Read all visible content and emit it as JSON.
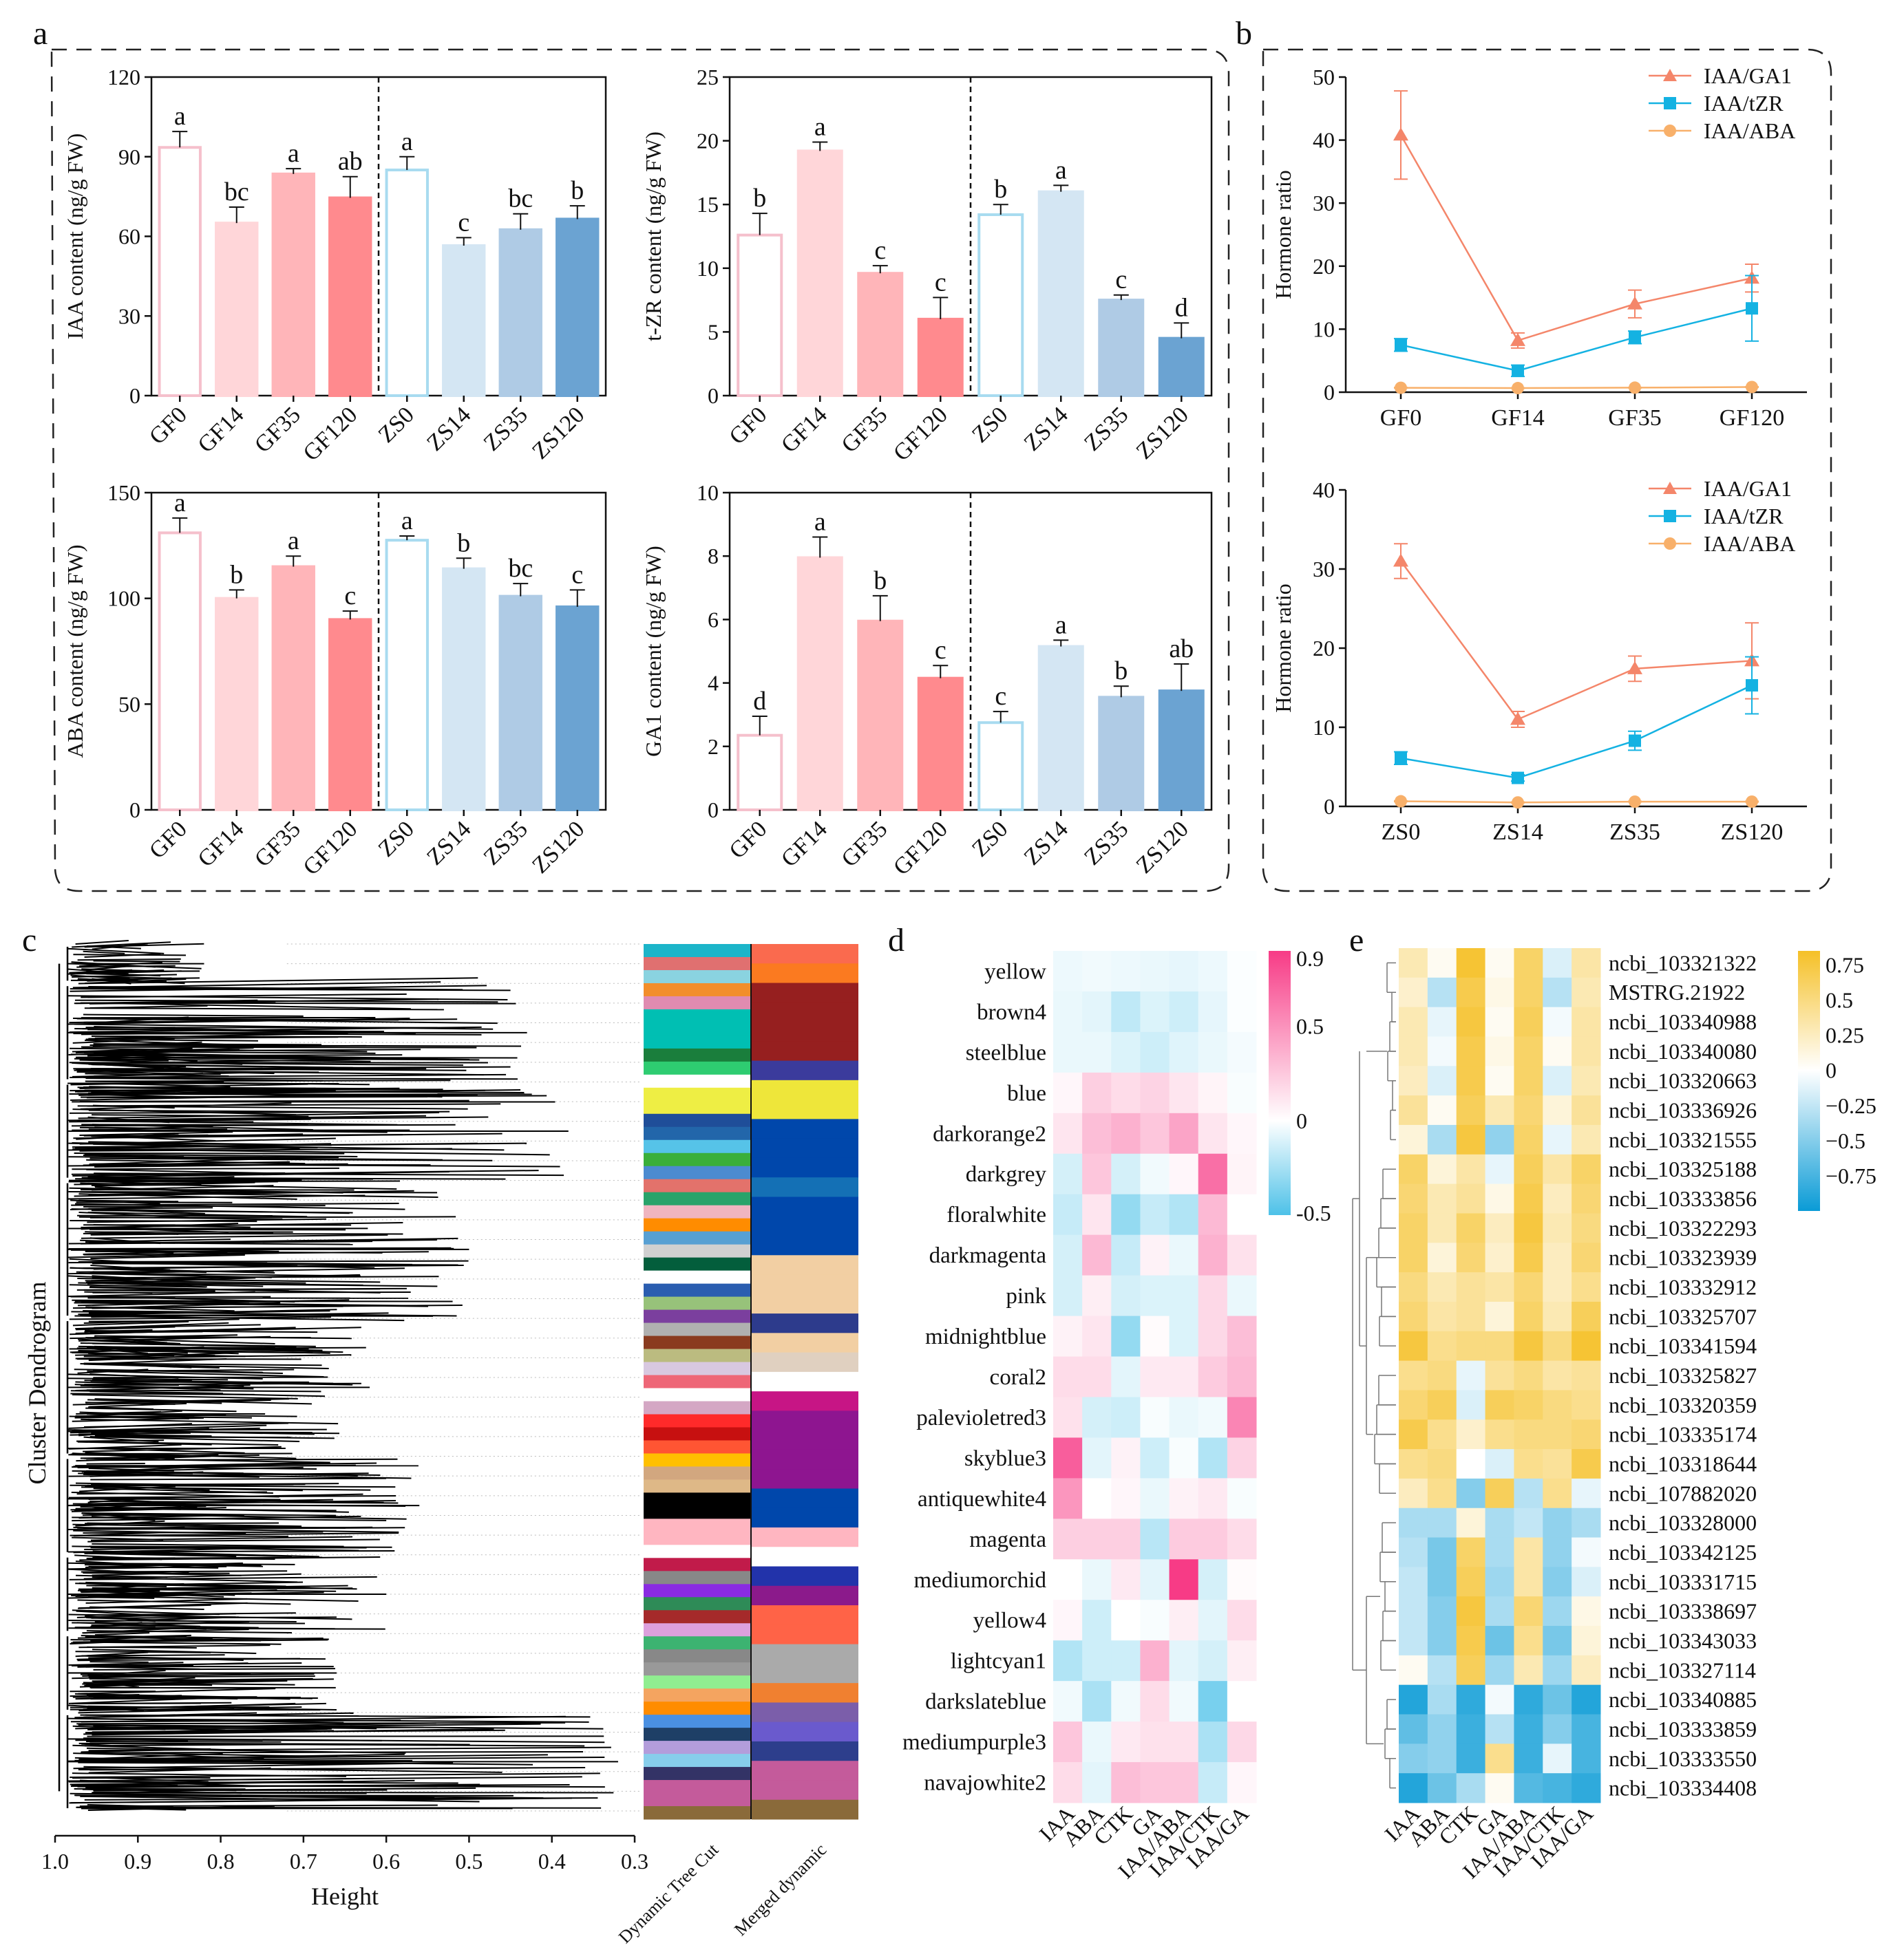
{
  "panels": {
    "a": "a",
    "b": "b",
    "c": "c",
    "d": "d",
    "e": "e"
  },
  "bar_group_labels": [
    "GF0",
    "GF14",
    "GF35",
    "GF120",
    "ZS0",
    "ZS14",
    "ZS35",
    "ZS120"
  ],
  "bar_colors": {
    "edge": [
      "#F5C0CC",
      "#FFD6D9",
      "#FFB5B9",
      "#FF8A8E",
      "#A8DBF0",
      "#D4E6F3",
      "#AFCBE5",
      "#6BA3D2"
    ],
    "fill": [
      "#FFFFFF",
      "#FFD6D9",
      "#FFB5B9",
      "#FF8A8E",
      "#FFFFFF",
      "#D4E6F3",
      "#AFCBE5",
      "#6BA3D2"
    ]
  },
  "chart_data": [
    {
      "id": "a1",
      "type": "bar",
      "ylabel": "IAA content (ng/g FW)",
      "ylim": [
        0,
        120
      ],
      "yticks": [
        0,
        30,
        60,
        90,
        120
      ],
      "categories": [
        "GF0",
        "GF14",
        "GF35",
        "GF120",
        "ZS0",
        "ZS14",
        "ZS35",
        "ZS120"
      ],
      "values": [
        93.5,
        65,
        83.5,
        74.5,
        85,
        56.5,
        62.5,
        66.5
      ],
      "errors": [
        6,
        6,
        2,
        8,
        5,
        3,
        6,
        5
      ],
      "letters": [
        "a",
        "bc",
        "a",
        "ab",
        "a",
        "c",
        "bc",
        "b"
      ]
    },
    {
      "id": "a2",
      "type": "bar",
      "ylabel": "t-ZR content (ng/g FW)",
      "ylim": [
        0,
        25
      ],
      "yticks": [
        0,
        5,
        10,
        15,
        20,
        25
      ],
      "categories": [
        "GF0",
        "GF14",
        "GF35",
        "GF120",
        "ZS0",
        "ZS14",
        "ZS35",
        "ZS120"
      ],
      "values": [
        12.6,
        19.2,
        9.6,
        6.0,
        14.2,
        16.0,
        7.5,
        4.5
      ],
      "errors": [
        1.7,
        0.7,
        0.6,
        1.7,
        0.8,
        0.5,
        0.4,
        1.2
      ],
      "letters": [
        "b",
        "a",
        "c",
        "c",
        "b",
        "a",
        "c",
        "d"
      ]
    },
    {
      "id": "a3",
      "type": "bar",
      "ylabel": "ABA content (ng/g FW)",
      "ylim": [
        0,
        150
      ],
      "yticks": [
        0,
        50,
        100,
        150
      ],
      "categories": [
        "GF0",
        "GF14",
        "GF35",
        "GF120",
        "ZS0",
        "ZS14",
        "ZS35",
        "ZS120"
      ],
      "values": [
        131,
        100,
        115,
        90,
        127.5,
        114,
        101,
        96
      ],
      "errors": [
        7,
        4,
        5,
        4,
        2,
        5,
        6,
        8
      ],
      "letters": [
        "a",
        "b",
        "a",
        "c",
        "a",
        "b",
        "bc",
        "c"
      ]
    },
    {
      "id": "a4",
      "type": "bar",
      "ylabel": "GA1 content (ng/g FW)",
      "ylim": [
        0,
        10
      ],
      "yticks": [
        0,
        2,
        4,
        6,
        8,
        10
      ],
      "categories": [
        "GF0",
        "GF14",
        "GF35",
        "GF120",
        "ZS0",
        "ZS14",
        "ZS35",
        "ZS120"
      ],
      "values": [
        2.35,
        7.95,
        5.95,
        4.15,
        2.75,
        5.15,
        3.55,
        3.75
      ],
      "errors": [
        0.6,
        0.65,
        0.8,
        0.4,
        0.35,
        0.2,
        0.35,
        0.85
      ],
      "letters": [
        "d",
        "a",
        "b",
        "c",
        "c",
        "a",
        "b",
        "ab"
      ]
    },
    {
      "id": "b1",
      "type": "line",
      "ylabel": "Hormone ratio",
      "ylim": [
        0,
        50
      ],
      "yticks": [
        0,
        10,
        20,
        30,
        40,
        50
      ],
      "categories": [
        "GF0",
        "GF14",
        "GF35",
        "GF120"
      ],
      "series": [
        {
          "name": "IAA/GA1",
          "values": [
            40.8,
            8.2,
            14.0,
            18.1
          ],
          "errors": [
            7.0,
            1.2,
            2.2,
            2.2
          ],
          "color": "#F4866A",
          "marker": "triangle"
        },
        {
          "name": "IAA/tZR",
          "values": [
            7.5,
            3.4,
            8.7,
            13.3
          ],
          "errors": [
            1.0,
            0.9,
            1.0,
            5.2
          ],
          "color": "#14B2E2",
          "marker": "square"
        },
        {
          "name": "IAA/ABA",
          "values": [
            0.7,
            0.65,
            0.72,
            0.82
          ],
          "errors": [
            0.05,
            0.05,
            0.05,
            0.05
          ],
          "color": "#F8B06A",
          "marker": "circle"
        }
      ]
    },
    {
      "id": "b2",
      "type": "line",
      "ylabel": "Hormone ratio",
      "ylim": [
        0,
        40
      ],
      "yticks": [
        0,
        10,
        20,
        30,
        40
      ],
      "categories": [
        "ZS0",
        "ZS14",
        "ZS35",
        "ZS120"
      ],
      "series": [
        {
          "name": "IAA/GA1",
          "values": [
            31.0,
            11.0,
            17.4,
            18.4
          ],
          "errors": [
            2.2,
            1.0,
            1.6,
            4.8
          ],
          "color": "#F4866A",
          "marker": "triangle"
        },
        {
          "name": "IAA/tZR",
          "values": [
            6.1,
            3.6,
            8.3,
            15.3
          ],
          "errors": [
            0.8,
            0.4,
            1.2,
            3.6
          ],
          "color": "#14B2E2",
          "marker": "square"
        },
        {
          "name": "IAA/ABA",
          "values": [
            0.65,
            0.5,
            0.6,
            0.6
          ],
          "errors": [
            0.05,
            0.05,
            0.05,
            0.05
          ],
          "color": "#F8B06A",
          "marker": "circle"
        }
      ]
    },
    {
      "id": "c",
      "type": "dendrogram",
      "ylabel": "Cluster Dendrogram",
      "xlabel": "Height",
      "xlim": [
        1.0,
        0.3
      ],
      "xticks": [
        "1.0",
        "0.9",
        "0.8",
        "0.7",
        "0.6",
        "0.5",
        "0.4",
        "0.3"
      ],
      "bar_labels": [
        "Dynamic Tree Cut",
        "Merged dynamic"
      ],
      "dynamic_colors": [
        "#1CB5C9",
        "#E07070",
        "#8AD3E0",
        "#F28E2B",
        "#E08BB0",
        "#00BFB3",
        "#00BFB3",
        "#00BFB3",
        "#1A7E3C",
        "#2ECC71",
        "#FFFFFF",
        "#EEEE44",
        "#EEEE44",
        "#1F4E99",
        "#2266AA",
        "#56C3E8",
        "#3AAF3A",
        "#4C8BD0",
        "#E3726B",
        "#29A36A",
        "#F0B5C0",
        "#FF8C00",
        "#57A0D3",
        "#D0D0D0",
        "#035E3C",
        "#FFFFFF",
        "#2A5DB0",
        "#97C27A",
        "#7B3F9E",
        "#B0B0B0",
        "#8A3B1F",
        "#BBBB80",
        "#D8C8E0",
        "#EE6677",
        "#FFFFFF",
        "#D4A7C4",
        "#FF2A2A",
        "#C71010",
        "#FF5533",
        "#FFC000",
        "#D2A77F",
        "#DEB887",
        "#000000",
        "#000000",
        "#FFB6C1",
        "#FFB6C1",
        "#FFFFFF",
        "#C11B4A",
        "#888888",
        "#8A2BE2",
        "#2E8B57",
        "#A52A2A",
        "#DDA0DD",
        "#3CB371",
        "#888888",
        "#999999",
        "#90EE90",
        "#F4A460",
        "#FF8C00",
        "#4A90E2",
        "#1E3F66",
        "#B39DDB",
        "#87CEEB",
        "#333366",
        "#C45B9B",
        "#C45B9B",
        "#8A6A3A"
      ],
      "merged_colors": [
        "#FA6A4E",
        "#FB7A20",
        "#961F1F",
        "#961F1F",
        "#961F1F",
        "#961F1F",
        "#3B3B9C",
        "#EEE63A",
        "#EEE63A",
        "#0047AB",
        "#0047AB",
        "#0047AB",
        "#1470B5",
        "#0047AB",
        "#0047AB",
        "#0047AB",
        "#F2CFA3",
        "#F2CFA3",
        "#F2CFA3",
        "#2D3B8C",
        "#F2CFA3",
        "#E0D0C0",
        "#FFFFFF",
        "#C71585",
        "#8E1590",
        "#8E1590",
        "#8E1590",
        "#8E1590",
        "#0047AB",
        "#0047AB",
        "#FFB6C1",
        "#FFFFFF",
        "#2233AA",
        "#8B1A8B",
        "#FF6347",
        "#FF6347",
        "#AAAAAA",
        "#AAAAAA",
        "#F08030",
        "#7B5EAA",
        "#6A5ACD",
        "#2D3E8C",
        "#C45B9B",
        "#C45B9B",
        "#8A6A3A"
      ]
    },
    {
      "id": "d",
      "type": "heatmap",
      "rows": [
        "yellow",
        "brown4",
        "steelblue",
        "blue",
        "darkorange2",
        "darkgrey",
        "floralwhite",
        "darkmagenta",
        "pink",
        "midnightblue",
        "coral2",
        "palevioletred3",
        "skyblue3",
        "antiquewhite4",
        "magenta",
        "mediumorchid",
        "yellow4",
        "lightcyan1",
        "darkslateblue",
        "mediumpurple3",
        "navajowhite2"
      ],
      "columns": [
        "IAA",
        "ABA",
        "CTK",
        "GA",
        "IAA/ABA",
        "IAA/CTK",
        "IAA/GA"
      ],
      "scale": {
        "min": -0.5,
        "max": 0.9,
        "ticks": [
          "0.9",
          "0.5",
          "0",
          "-0.5"
        ],
        "low": "#4DC1E8",
        "mid": "#FFFFFF",
        "high": "#F73B86"
      },
      "values": [
        [
          -0.05,
          -0.04,
          -0.05,
          -0.06,
          -0.07,
          -0.05,
          -0.01
        ],
        [
          -0.06,
          -0.08,
          -0.18,
          -0.1,
          -0.14,
          -0.07,
          -0.01
        ],
        [
          -0.06,
          -0.06,
          -0.1,
          -0.14,
          -0.09,
          -0.06,
          -0.03
        ],
        [
          0.04,
          0.22,
          0.16,
          0.2,
          0.12,
          0.05,
          -0.02
        ],
        [
          0.12,
          0.3,
          0.36,
          0.26,
          0.42,
          0.12,
          0.04
        ],
        [
          -0.12,
          0.26,
          -0.12,
          -0.04,
          0.04,
          0.66,
          0.05
        ],
        [
          -0.16,
          0.12,
          -0.3,
          -0.16,
          -0.22,
          0.32,
          0.0
        ],
        [
          -0.12,
          0.32,
          -0.16,
          0.06,
          -0.06,
          0.36,
          0.14
        ],
        [
          -0.12,
          0.08,
          -0.12,
          -0.1,
          -0.1,
          0.18,
          -0.06
        ],
        [
          0.06,
          0.12,
          -0.3,
          0.02,
          -0.1,
          0.18,
          0.3
        ],
        [
          0.16,
          0.16,
          -0.08,
          0.1,
          0.1,
          0.24,
          0.32
        ],
        [
          0.14,
          -0.12,
          -0.14,
          -0.02,
          -0.06,
          -0.04,
          0.56
        ],
        [
          0.74,
          -0.08,
          0.06,
          -0.14,
          -0.02,
          -0.22,
          0.2
        ],
        [
          0.48,
          0.0,
          0.04,
          -0.06,
          0.06,
          0.1,
          -0.02
        ],
        [
          0.22,
          0.22,
          0.22,
          -0.2,
          0.24,
          0.24,
          0.16
        ],
        [
          0.0,
          -0.06,
          0.1,
          -0.08,
          0.9,
          -0.12,
          0.02
        ],
        [
          0.04,
          -0.14,
          0.0,
          -0.02,
          0.08,
          -0.08,
          0.16
        ],
        [
          -0.22,
          -0.14,
          -0.14,
          0.36,
          -0.08,
          -0.12,
          0.08
        ],
        [
          -0.04,
          -0.24,
          -0.04,
          0.16,
          -0.04,
          -0.38,
          0.0
        ],
        [
          0.26,
          -0.06,
          0.1,
          0.14,
          0.14,
          -0.24,
          0.18
        ],
        [
          0.16,
          -0.08,
          0.3,
          0.26,
          0.26,
          -0.16,
          0.04
        ]
      ]
    },
    {
      "id": "e",
      "type": "heatmap",
      "rows": [
        "ncbi_103321322",
        "MSTRG.21922",
        "ncbi_103340988",
        "ncbi_103340080",
        "ncbi_103320663",
        "ncbi_103336926",
        "ncbi_103321555",
        "ncbi_103325188",
        "ncbi_103333856",
        "ncbi_103322293",
        "ncbi_103323939",
        "ncbi_103332912",
        "ncbi_103325707",
        "ncbi_103341594",
        "ncbi_103325827",
        "ncbi_103320359",
        "ncbi_103335174",
        "ncbi_103318644",
        "ncbi_107882020",
        "ncbi_103328000",
        "ncbi_103342125",
        "ncbi_103331715",
        "ncbi_103338697",
        "ncbi_103343033",
        "ncbi_103327114",
        "ncbi_103340885",
        "ncbi_103333859",
        "ncbi_103333550",
        "ncbi_103334408"
      ],
      "columns": [
        "IAA",
        "ABA",
        "CTK",
        "GA",
        "IAA/ABA",
        "IAA/CTK",
        "IAA/GA"
      ],
      "scale": {
        "min": -1.0,
        "max": 0.85,
        "ticks": [
          "0.75",
          "0.5",
          "0.25",
          "0",
          "−0.25",
          "−0.5",
          "−0.75"
        ],
        "tick_values": [
          0.75,
          0.5,
          0.25,
          0,
          -0.25,
          -0.5,
          -0.75
        ],
        "low": "#0A9BD6",
        "mid": "#FFFFFF",
        "high": "#F5C027"
      },
      "values": [
        [
          0.3,
          0.05,
          0.8,
          0.05,
          0.6,
          -0.15,
          0.35
        ],
        [
          0.2,
          -0.3,
          0.7,
          0.1,
          0.6,
          -0.3,
          0.3
        ],
        [
          0.3,
          -0.1,
          0.75,
          0.05,
          0.65,
          -0.05,
          0.35
        ],
        [
          0.3,
          -0.05,
          0.7,
          0.1,
          0.6,
          0.05,
          0.35
        ],
        [
          0.25,
          -0.15,
          0.7,
          0.05,
          0.6,
          -0.15,
          0.3
        ],
        [
          0.4,
          0.05,
          0.65,
          0.3,
          0.55,
          0.15,
          0.4
        ],
        [
          0.15,
          -0.35,
          0.75,
          -0.45,
          0.6,
          -0.1,
          0.3
        ],
        [
          0.6,
          0.15,
          0.35,
          -0.1,
          0.65,
          0.35,
          0.6
        ],
        [
          0.55,
          0.3,
          0.4,
          0.1,
          0.7,
          0.25,
          0.55
        ],
        [
          0.6,
          0.3,
          0.6,
          0.25,
          0.75,
          0.3,
          0.5
        ],
        [
          0.6,
          0.15,
          0.55,
          0.2,
          0.7,
          0.25,
          0.55
        ],
        [
          0.5,
          0.3,
          0.4,
          0.35,
          0.55,
          0.25,
          0.45
        ],
        [
          0.55,
          0.35,
          0.4,
          0.15,
          0.6,
          0.3,
          0.65
        ],
        [
          0.75,
          0.45,
          0.5,
          0.5,
          0.75,
          0.5,
          0.8
        ],
        [
          0.45,
          0.5,
          -0.1,
          0.4,
          0.5,
          0.35,
          0.4
        ],
        [
          0.55,
          0.65,
          -0.15,
          0.65,
          0.6,
          0.5,
          0.45
        ],
        [
          0.7,
          0.45,
          0.2,
          0.45,
          0.5,
          0.5,
          0.55
        ],
        [
          0.45,
          0.5,
          0.0,
          -0.15,
          0.45,
          0.4,
          0.7
        ],
        [
          0.25,
          0.45,
          -0.5,
          0.65,
          -0.3,
          0.45,
          -0.1
        ],
        [
          -0.35,
          -0.35,
          0.15,
          -0.35,
          -0.25,
          -0.45,
          -0.35
        ],
        [
          -0.3,
          -0.55,
          0.6,
          -0.35,
          0.35,
          -0.45,
          -0.05
        ],
        [
          -0.25,
          -0.55,
          0.65,
          -0.4,
          0.35,
          -0.5,
          -0.15
        ],
        [
          -0.25,
          -0.5,
          0.75,
          -0.35,
          0.55,
          -0.4,
          0.1
        ],
        [
          -0.25,
          -0.5,
          0.7,
          -0.6,
          0.45,
          -0.55,
          0.15
        ],
        [
          0.05,
          -0.3,
          0.65,
          -0.4,
          0.3,
          -0.4,
          0.25
        ],
        [
          -0.9,
          -0.35,
          -0.85,
          -0.05,
          -0.85,
          -0.6,
          -0.9
        ],
        [
          -0.65,
          -0.45,
          -0.8,
          -0.3,
          -0.8,
          -0.5,
          -0.75
        ],
        [
          -0.5,
          -0.45,
          -0.8,
          0.45,
          -0.8,
          -0.1,
          -0.75
        ],
        [
          -0.9,
          -0.6,
          -0.35,
          0.05,
          -0.7,
          -0.75,
          -0.85
        ]
      ]
    }
  ]
}
